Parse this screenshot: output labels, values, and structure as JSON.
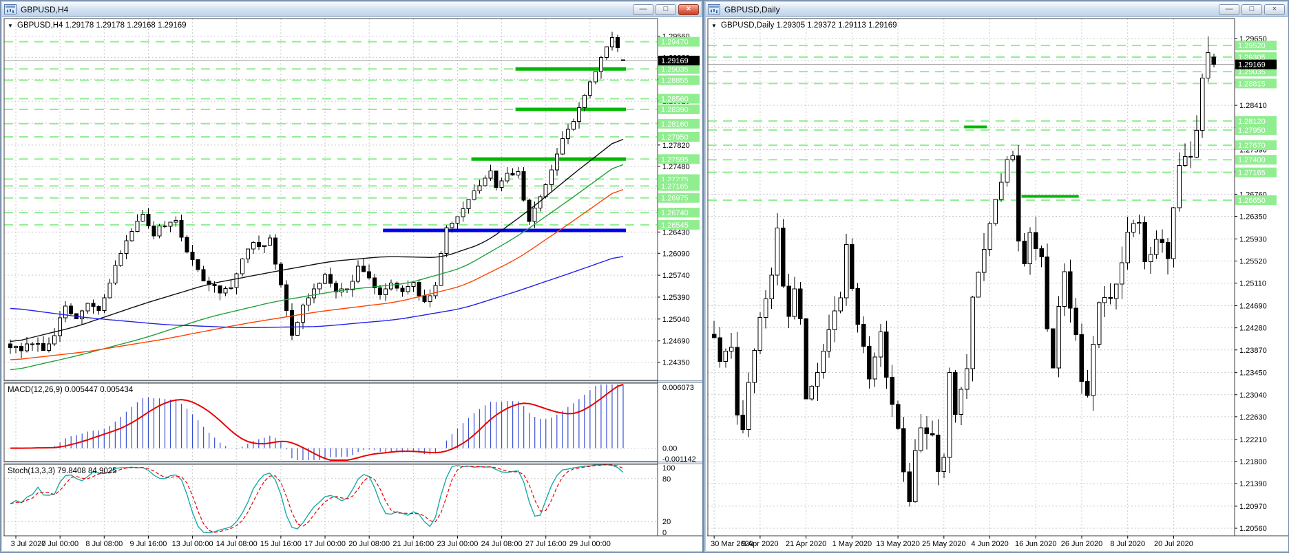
{
  "app": {
    "background": "#7e8b9d"
  },
  "windows": [
    {
      "title": "GBPUSD,H4",
      "active": true,
      "controls": {
        "minimize": "—",
        "restore": "□",
        "close": "×"
      }
    },
    {
      "title": "GBPUSD,Daily",
      "active": false,
      "controls": {
        "minimize": "—",
        "restore": "□",
        "close": "×"
      }
    }
  ],
  "chart_data": [
    {
      "type": "candlestick",
      "symbol": "GBPUSD",
      "timeframe": "H4",
      "header": "GBPUSD,H4  1.29178 1.29178 1.29168 1.29169",
      "dropdown_glyph": "▼",
      "last_ohlc": [
        1.29178,
        1.29178,
        1.29168,
        1.29169
      ],
      "bars": 112,
      "seed": 7,
      "noise": 0.0005,
      "wick": 0.0012,
      "price_range": {
        "top": 1.2984,
        "bottom": 1.2406
      },
      "current_price": {
        "value": 1.29169
      },
      "x_ticks": {
        "bars": [
          1,
          9,
          17,
          25,
          33,
          41,
          49,
          57,
          65,
          73,
          81,
          89,
          97,
          105
        ],
        "labels": [
          "3 Jul 2020",
          "7 Jul 00:00",
          "8 Jul 08:00",
          "9 Jul 16:00",
          "13 Jul 00:00",
          "14 Jul 08:00",
          "15 Jul 16:00",
          "17 Jul 00:00",
          "20 Jul 08:00",
          "21 Jul 16:00",
          "23 Jul 00:00",
          "24 Jul 08:00",
          "27 Jul 16:00",
          "29 Jul 00:00"
        ]
      },
      "grid_prices": [
        1.2956,
        1.2922,
        1.2887,
        1.2852,
        1.2817,
        1.2782,
        1.2748,
        1.2713,
        1.2678,
        1.2643,
        1.2609,
        1.2574,
        1.2539,
        1.2504,
        1.2469,
        1.2435
      ],
      "level_prices": [
        1.2947,
        1.29035,
        1.28855,
        1.2856,
        1.2839,
        1.2816,
        1.2795,
        1.27595,
        1.27275,
        1.27165,
        1.26975,
        1.2674,
        1.26545
      ],
      "segments": [
        {
          "price": 1.29035,
          "from": 92,
          "to": 111,
          "color": "#00B800",
          "w": 5
        },
        {
          "price": 1.2839,
          "from": 92,
          "to": 111,
          "color": "#00B800",
          "w": 5
        },
        {
          "price": 1.27595,
          "from": 84,
          "to": 111,
          "color": "#00B800",
          "w": 5
        },
        {
          "price": 1.26455,
          "from": 68,
          "to": 111,
          "color": "#0000F0",
          "w": 5
        }
      ],
      "close_waypoints": [
        [
          0,
          1.2461
        ],
        [
          2,
          1.2452
        ],
        [
          4,
          1.2468
        ],
        [
          6,
          1.2455
        ],
        [
          8,
          1.2482
        ],
        [
          10,
          1.252
        ],
        [
          12,
          1.2505
        ],
        [
          14,
          1.2528
        ],
        [
          16,
          1.2515
        ],
        [
          18,
          1.2562
        ],
        [
          20,
          1.261
        ],
        [
          22,
          1.2648
        ],
        [
          24,
          1.2668
        ],
        [
          26,
          1.264
        ],
        [
          28,
          1.2656
        ],
        [
          30,
          1.2662
        ],
        [
          32,
          1.2615
        ],
        [
          34,
          1.258
        ],
        [
          36,
          1.2558
        ],
        [
          38,
          1.2548
        ],
        [
          40,
          1.2556
        ],
        [
          42,
          1.26
        ],
        [
          44,
          1.2628
        ],
        [
          46,
          1.2618
        ],
        [
          47,
          1.2632
        ],
        [
          49,
          1.2554
        ],
        [
          51,
          1.2481
        ],
        [
          53,
          1.2522
        ],
        [
          55,
          1.2552
        ],
        [
          57,
          1.2576
        ],
        [
          59,
          1.2552
        ],
        [
          61,
          1.2548
        ],
        [
          63,
          1.2588
        ],
        [
          65,
          1.2566
        ],
        [
          67,
          1.2544
        ],
        [
          69,
          1.2558
        ],
        [
          71,
          1.2548
        ],
        [
          73,
          1.2558
        ],
        [
          75,
          1.2528
        ],
        [
          77,
          1.256
        ],
        [
          79,
          1.2648
        ],
        [
          81,
          1.2672
        ],
        [
          83,
          1.2692
        ],
        [
          85,
          1.272
        ],
        [
          87,
          1.2738
        ],
        [
          88,
          1.2715
        ],
        [
          90,
          1.2738
        ],
        [
          92,
          1.2736
        ],
        [
          94,
          1.2658
        ],
        [
          96,
          1.27
        ],
        [
          98,
          1.2742
        ],
        [
          100,
          1.2796
        ],
        [
          102,
          1.282
        ],
        [
          104,
          1.2858
        ],
        [
          106,
          1.2902
        ],
        [
          108,
          1.2938
        ],
        [
          109,
          1.2958
        ],
        [
          110,
          1.2935
        ],
        [
          111,
          1.29169
        ]
      ],
      "mas": [
        {
          "name": "ma-slow-black",
          "color": "#101010",
          "points": [
            [
              0,
              1.2466
            ],
            [
              12,
              1.2492
            ],
            [
              24,
              1.2528
            ],
            [
              36,
              1.256
            ],
            [
              48,
              1.258
            ],
            [
              58,
              1.2596
            ],
            [
              68,
              1.2604
            ],
            [
              78,
              1.2602
            ],
            [
              86,
              1.2626
            ],
            [
              94,
              1.2678
            ],
            [
              102,
              1.2736
            ],
            [
              111,
              1.2798
            ]
          ]
        },
        {
          "name": "ma-green",
          "color": "#22A03C",
          "points": [
            [
              0,
              1.2421
            ],
            [
              12,
              1.2445
            ],
            [
              24,
              1.2473
            ],
            [
              36,
              1.2507
            ],
            [
              48,
              1.2532
            ],
            [
              60,
              1.255
            ],
            [
              72,
              1.2561
            ],
            [
              82,
              1.2586
            ],
            [
              92,
              1.2637
            ],
            [
              102,
              1.2699
            ],
            [
              111,
              1.2757
            ]
          ]
        },
        {
          "name": "ma-orange",
          "color": "#FF4300",
          "points": [
            [
              0,
              1.2438
            ],
            [
              14,
              1.2452
            ],
            [
              28,
              1.2472
            ],
            [
              42,
              1.2496
            ],
            [
              56,
              1.2516
            ],
            [
              70,
              1.2531
            ],
            [
              82,
              1.2557
            ],
            [
              92,
              1.2601
            ],
            [
              102,
              1.2661
            ],
            [
              111,
              1.2717
            ]
          ]
        },
        {
          "name": "ma-blue",
          "color": "#2222E8",
          "points": [
            [
              0,
              1.2522
            ],
            [
              14,
              1.2506
            ],
            [
              28,
              1.2495
            ],
            [
              42,
              1.249
            ],
            [
              56,
              1.2492
            ],
            [
              70,
              1.2503
            ],
            [
              82,
              1.2521
            ],
            [
              92,
              1.2549
            ],
            [
              102,
              1.2579
            ],
            [
              111,
              1.2607
            ]
          ]
        }
      ],
      "indicators": {
        "macd": {
          "label": "MACD(12,26,9)",
          "values": "0.005447 0.005434",
          "max": 0.006073,
          "min": -0.001142,
          "axis_top": "0.006073",
          "axis_zero": "0.00",
          "axis_bottom": "-0.001142",
          "hist_color": "#3A4FD0",
          "signal_color": "#E80000"
        },
        "stoch": {
          "label": "Stoch(13,3,3)",
          "values": "79.8408 84.9025",
          "axis": [
            100,
            80,
            20,
            0
          ],
          "k_color": "#18AAA6",
          "d_color": "#E80000"
        }
      },
      "colors": {
        "grid": "#C9C9C9",
        "level": "#90EE90",
        "up": "#FFFFFF",
        "down": "#000000",
        "outline": "#000000",
        "current_line": "#9A9A9A",
        "label_green_bg": "#90EE90",
        "label_black_bg": "#000000"
      }
    },
    {
      "type": "candlestick",
      "symbol": "GBPUSD",
      "timeframe": "Daily",
      "header": "GBPUSD,Daily  1.29305 1.29372 1.29113 1.29169",
      "dropdown_glyph": "▼",
      "last_ohlc": [
        1.29305,
        1.29372,
        1.29113,
        1.29169
      ],
      "bars": 88,
      "seed": 11,
      "noise": 0.001,
      "wick": 0.003,
      "price_range": {
        "top": 1.3002,
        "bottom": 1.2042
      },
      "current_price": {
        "value": 1.29169
      },
      "x_ticks": {
        "bars": [
          0,
          8,
          16,
          24,
          32,
          40,
          48,
          56,
          64,
          72,
          80
        ],
        "labels": [
          "30 Mar 2020",
          "9 Apr 2020",
          "21 Apr 2020",
          "1 May 2020",
          "13 May 2020",
          "25 May 2020",
          "4 Jun 2020",
          "16 Jun 2020",
          "26 Jun 2020",
          "8 Jul 2020",
          "20 Jul 2020"
        ]
      },
      "grid_prices": [
        1.2965,
        1.2924,
        1.28825,
        1.2841,
        1.28,
        1.2759,
        1.27175,
        1.2676,
        1.2635,
        1.2593,
        1.2552,
        1.2511,
        1.2469,
        1.2428,
        1.2387,
        1.2345,
        1.2304,
        1.2263,
        1.2221,
        1.218,
        1.2139,
        1.2097,
        1.2056
      ],
      "level_prices": [
        1.2952,
        1.29305,
        1.29035,
        1.28815,
        1.2812,
        1.2795,
        1.2767,
        1.274,
        1.27165,
        1.2665
      ],
      "segments": [
        {
          "price": 1.2801,
          "from": 44,
          "to": 47,
          "color": "#00B800",
          "w": 4
        },
        {
          "price": 1.2672,
          "from": 54,
          "to": 63,
          "color": "#00B800",
          "w": 4
        }
      ],
      "close_waypoints": [
        [
          0,
          1.2415
        ],
        [
          1,
          1.237
        ],
        [
          2,
          1.2388
        ],
        [
          3,
          1.24
        ],
        [
          4,
          1.2262
        ],
        [
          5,
          1.2232
        ],
        [
          6,
          1.2335
        ],
        [
          7,
          1.2382
        ],
        [
          8,
          1.2455
        ],
        [
          10,
          1.252
        ],
        [
          11,
          1.2618
        ],
        [
          12,
          1.2508
        ],
        [
          13,
          1.2452
        ],
        [
          14,
          1.25
        ],
        [
          15,
          1.2442
        ],
        [
          16,
          1.2298
        ],
        [
          18,
          1.2342
        ],
        [
          20,
          1.2432
        ],
        [
          22,
          1.2478
        ],
        [
          23,
          1.2592
        ],
        [
          24,
          1.2505
        ],
        [
          25,
          1.2442
        ],
        [
          27,
          1.2342
        ],
        [
          29,
          1.2412
        ],
        [
          30,
          1.233
        ],
        [
          32,
          1.2232
        ],
        [
          34,
          1.2108
        ],
        [
          35,
          1.2195
        ],
        [
          36,
          1.2252
        ],
        [
          38,
          1.2222
        ],
        [
          39,
          1.2168
        ],
        [
          40,
          1.2192
        ],
        [
          41,
          1.2338
        ],
        [
          42,
          1.2262
        ],
        [
          44,
          1.2348
        ],
        [
          45,
          1.2492
        ],
        [
          47,
          1.2572
        ],
        [
          49,
          1.2668
        ],
        [
          51,
          1.2738
        ],
        [
          52,
          1.2748
        ],
        [
          53,
          1.2598
        ],
        [
          54,
          1.2542
        ],
        [
          55,
          1.2612
        ],
        [
          57,
          1.2556
        ],
        [
          58,
          1.2428
        ],
        [
          59,
          1.2352
        ],
        [
          60,
          1.2472
        ],
        [
          61,
          1.2522
        ],
        [
          63,
          1.2422
        ],
        [
          64,
          1.2338
        ],
        [
          65,
          1.2302
        ],
        [
          66,
          1.2402
        ],
        [
          67,
          1.2478
        ],
        [
          69,
          1.2482
        ],
        [
          71,
          1.2548
        ],
        [
          72,
          1.2612
        ],
        [
          74,
          1.2626
        ],
        [
          75,
          1.2558
        ],
        [
          77,
          1.2588
        ],
        [
          79,
          1.2566
        ],
        [
          80,
          1.2656
        ],
        [
          81,
          1.2732
        ],
        [
          83,
          1.2748
        ],
        [
          84,
          1.2798
        ],
        [
          85,
          1.2882
        ],
        [
          86,
          1.2938
        ],
        [
          87,
          1.29169
        ]
      ],
      "mas": [],
      "indicators": null,
      "colors": {
        "grid": "#C9C9C9",
        "level": "#90EE90",
        "up": "#FFFFFF",
        "down": "#000000",
        "outline": "#000000",
        "current_line": "#9A9A9A",
        "label_green_bg": "#90EE90",
        "label_black_bg": "#000000"
      }
    }
  ]
}
